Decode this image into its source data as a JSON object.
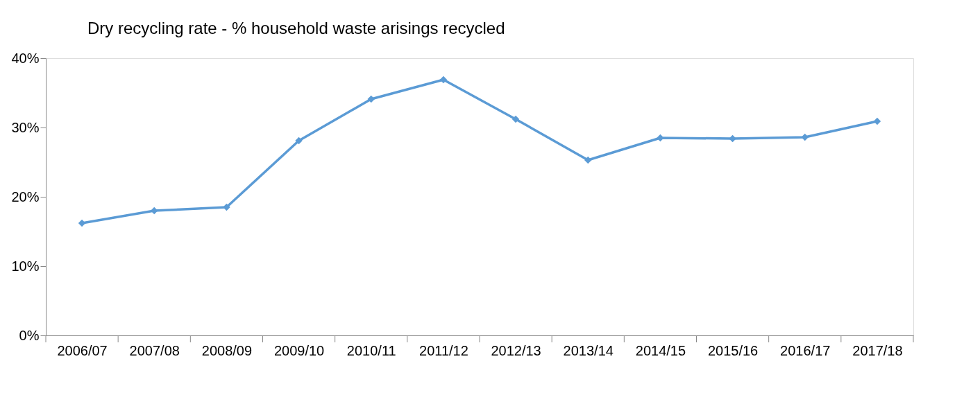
{
  "chart_data": {
    "type": "line",
    "title": "Dry recycling rate - % household waste arisings recycled",
    "categories": [
      "2006/07",
      "2007/08",
      "2008/09",
      "2009/10",
      "2010/11",
      "2011/12",
      "2012/13",
      "2013/14",
      "2014/15",
      "2015/16",
      "2016/17",
      "2017/18"
    ],
    "series": [
      {
        "color": "#5b9bd5",
        "values": [
          16.2,
          18.0,
          18.5,
          28.1,
          34.1,
          36.9,
          31.2,
          25.3,
          28.5,
          28.4,
          28.6,
          30.9
        ]
      }
    ],
    "ylim": [
      0,
      40
    ],
    "yticks": [
      {
        "value": 0,
        "label": "0%"
      },
      {
        "value": 10,
        "label": "10%"
      },
      {
        "value": 20,
        "label": "20%"
      },
      {
        "value": 30,
        "label": "30%"
      },
      {
        "value": 40,
        "label": "40%"
      }
    ],
    "marker": "diamond",
    "line_style": "solid",
    "grid": false,
    "legend": false
  }
}
